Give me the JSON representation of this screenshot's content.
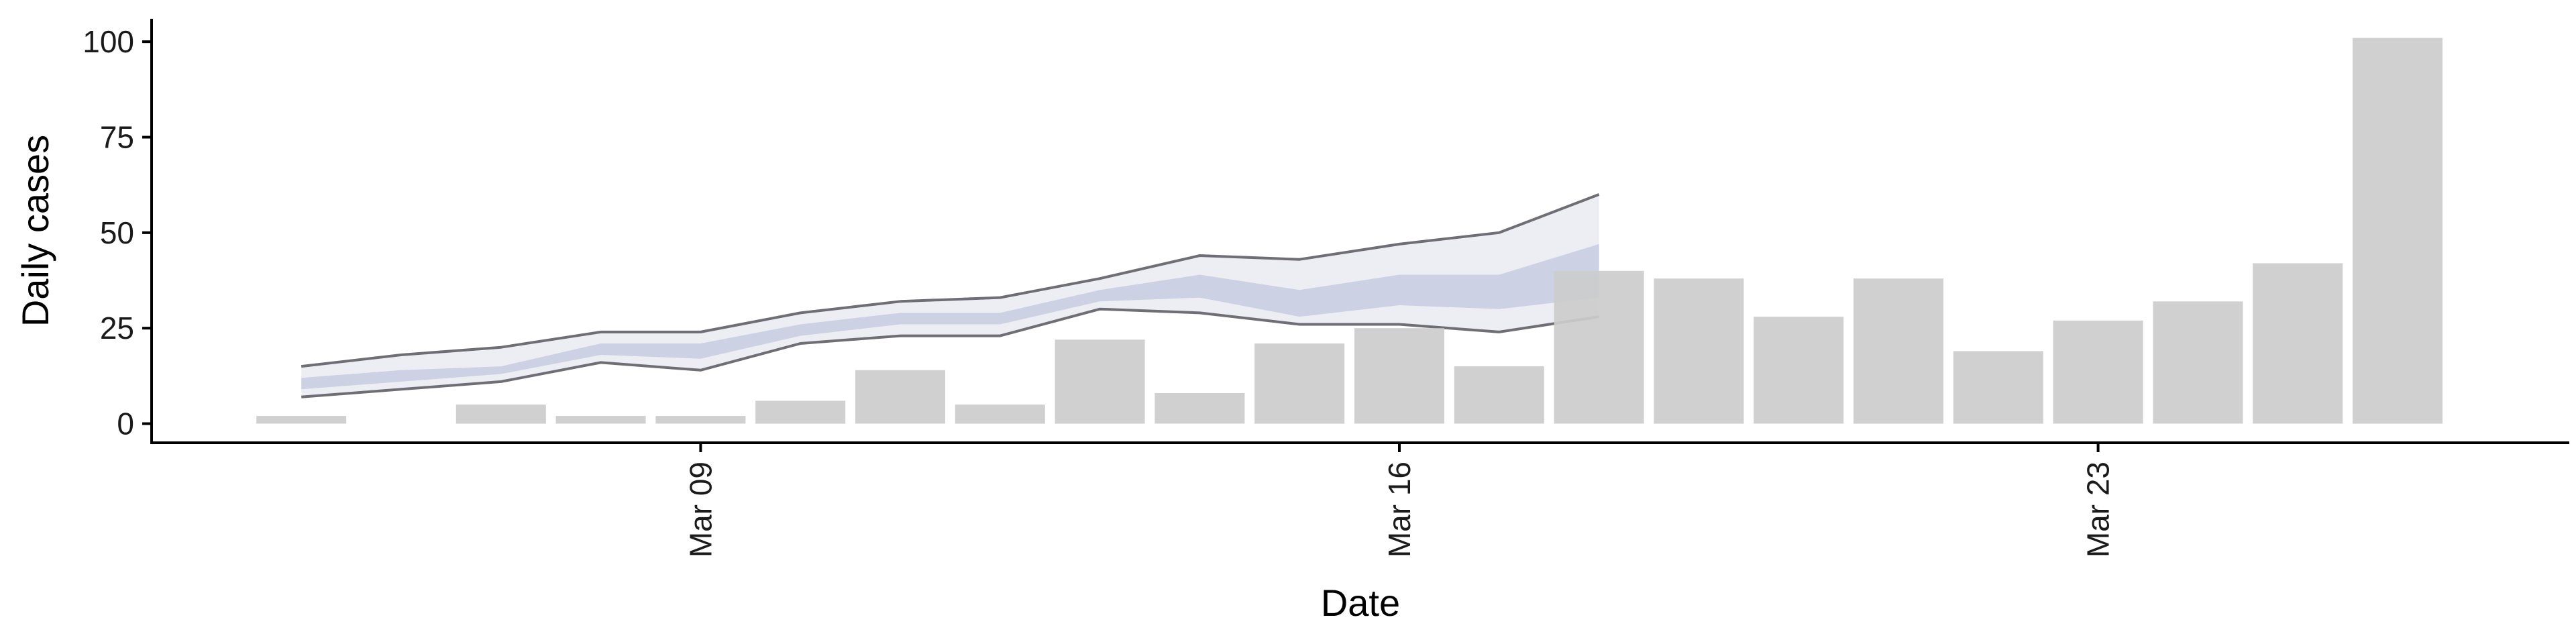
{
  "chart_data": {
    "type": "bar",
    "xlabel": "Date",
    "ylabel": "Daily cases",
    "ylim": [
      -5,
      106
    ],
    "xlim": [
      "2020-03-04",
      "2020-03-30"
    ],
    "yticks": [
      0,
      25,
      50,
      75,
      100
    ],
    "xticks": [
      {
        "date": "2020-03-09",
        "label": "Mar 09"
      },
      {
        "date": "2020-03-16",
        "label": "Mar 16"
      },
      {
        "date": "2020-03-23",
        "label": "Mar 23"
      }
    ],
    "grid": false,
    "legend": "none",
    "bars": [
      {
        "date": "2020-03-05",
        "value": 2
      },
      {
        "date": "2020-03-07",
        "value": 5
      },
      {
        "date": "2020-03-08",
        "value": 2
      },
      {
        "date": "2020-03-09",
        "value": 2
      },
      {
        "date": "2020-03-10",
        "value": 6
      },
      {
        "date": "2020-03-11",
        "value": 14
      },
      {
        "date": "2020-03-12",
        "value": 5
      },
      {
        "date": "2020-03-13",
        "value": 22
      },
      {
        "date": "2020-03-14",
        "value": 8
      },
      {
        "date": "2020-03-15",
        "value": 21
      },
      {
        "date": "2020-03-16",
        "value": 25
      },
      {
        "date": "2020-03-17",
        "value": 15
      },
      {
        "date": "2020-03-18",
        "value": 40
      },
      {
        "date": "2020-03-19",
        "value": 38
      },
      {
        "date": "2020-03-20",
        "value": 28
      },
      {
        "date": "2020-03-21",
        "value": 38
      },
      {
        "date": "2020-03-22",
        "value": 19
      },
      {
        "date": "2020-03-23",
        "value": 27
      },
      {
        "date": "2020-03-24",
        "value": 32
      },
      {
        "date": "2020-03-25",
        "value": 42
      },
      {
        "date": "2020-03-26",
        "value": 101
      }
    ],
    "band": {
      "dates": [
        "2020-03-05",
        "2020-03-06",
        "2020-03-07",
        "2020-03-08",
        "2020-03-09",
        "2020-03-10",
        "2020-03-11",
        "2020-03-12",
        "2020-03-13",
        "2020-03-14",
        "2020-03-15",
        "2020-03-16",
        "2020-03-17",
        "2020-03-18"
      ],
      "outer_lower": [
        7,
        9,
        11,
        16,
        14,
        21,
        23,
        23,
        30,
        29,
        26,
        26,
        24,
        28
      ],
      "outer_upper": [
        15,
        18,
        20,
        24,
        24,
        29,
        32,
        33,
        38,
        44,
        43,
        47,
        50,
        60
      ],
      "inner_lower": [
        9,
        11,
        13,
        18,
        17,
        23,
        26,
        26,
        32,
        33,
        28,
        31,
        30,
        33
      ],
      "inner_upper": [
        12,
        14,
        15,
        21,
        21,
        26,
        29,
        29,
        35,
        39,
        35,
        39,
        39,
        47
      ]
    },
    "colors": {
      "bar": "#cccccc",
      "outer_band": "#edeef3",
      "inner_band": "#c8cee2",
      "band_edge": "#6e6e74",
      "axis": "#000000"
    }
  }
}
